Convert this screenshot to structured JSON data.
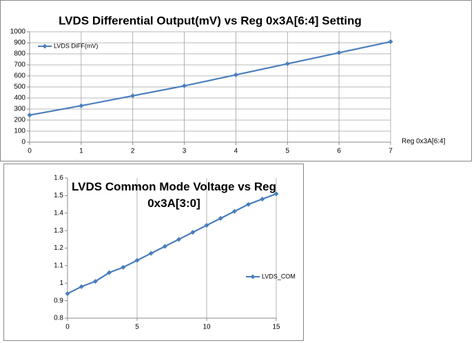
{
  "chart_data": [
    {
      "type": "line",
      "title": "LVDS Differential Output(mV) vs Reg 0x3A[6:4] Setting",
      "x_label": "Reg 0x3A[6:4]",
      "x": [
        0,
        1,
        2,
        3,
        4,
        5,
        6,
        7
      ],
      "series": [
        {
          "name": "LVDS DiFF(mV)",
          "color": "#4a7ebb",
          "values": [
            245,
            330,
            420,
            510,
            610,
            710,
            810,
            910
          ]
        }
      ],
      "xlim": [
        0,
        7
      ],
      "xticks": [
        0,
        1,
        2,
        3,
        4,
        5,
        6,
        7
      ],
      "ylim": [
        0,
        1000
      ],
      "yticks": [
        0,
        100,
        200,
        300,
        400,
        500,
        600,
        700,
        800,
        900,
        1000
      ],
      "grid": "both",
      "legend": "upper left"
    },
    {
      "type": "line",
      "title": "LVDS Common Mode Voltage vs Reg 0x3A[3:0]",
      "x": [
        0,
        1,
        2,
        3,
        4,
        5,
        6,
        7,
        8,
        9,
        10,
        11,
        12,
        13,
        14,
        15
      ],
      "series": [
        {
          "name": "LVDS_COM",
          "color": "#4a7ebb",
          "values": [
            0.94,
            0.98,
            1.01,
            1.06,
            1.09,
            1.13,
            1.17,
            1.21,
            1.25,
            1.29,
            1.33,
            1.37,
            1.41,
            1.45,
            1.48,
            1.51
          ]
        }
      ],
      "xlim": [
        0,
        15
      ],
      "xticks": [
        0,
        5,
        10,
        15
      ],
      "ylim": [
        0.8,
        1.6
      ],
      "yticks": [
        0.8,
        0.9,
        1,
        1.1,
        1.2,
        1.3,
        1.4,
        1.5,
        1.6
      ],
      "grid": "x",
      "legend": "center right"
    }
  ]
}
